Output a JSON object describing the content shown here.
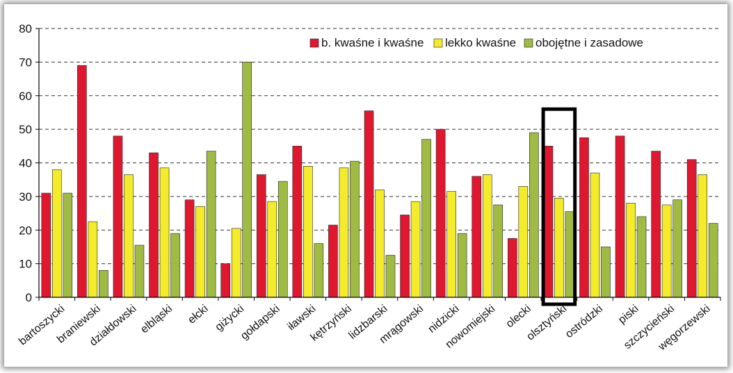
{
  "chart_data": {
    "type": "bar",
    "title": "",
    "xlabel": "",
    "ylabel": "",
    "ylim": [
      0,
      80
    ],
    "yticks": [
      0,
      10,
      20,
      30,
      40,
      50,
      60,
      70,
      80
    ],
    "grid": "horizontal dashed",
    "legend_position": "top-right",
    "categories": [
      "bartoszycki",
      "braniewski",
      "działdowski",
      "elbląski",
      "ełcki",
      "giżycki",
      "gołdapski",
      "iławski",
      "kętrzyński",
      "lidzbarski",
      "mrągowski",
      "nidzicki",
      "nowomiejski",
      "olecki",
      "olsztyński",
      "ostródzki",
      "piski",
      "szczycieński",
      "węgorzewski"
    ],
    "series": [
      {
        "name": "b. kwaśne i kwaśne",
        "color": "#e0182f",
        "values": [
          31,
          69,
          48,
          43,
          29,
          10,
          36.5,
          45,
          21.5,
          55.5,
          24.5,
          50,
          36,
          17.5,
          45,
          47.5,
          48,
          43.5,
          41
        ]
      },
      {
        "name": "lekko kwaśne",
        "color": "#f4ec2a",
        "values": [
          38,
          22.5,
          36.5,
          38.5,
          27,
          20.5,
          28.5,
          39,
          38.5,
          32,
          28.5,
          31.5,
          36.5,
          33,
          29.5,
          37,
          28,
          27.5,
          36.5
        ]
      },
      {
        "name": "obojętne i zasadowe",
        "color": "#9fbb44",
        "values": [
          31,
          8,
          15.5,
          19,
          43.5,
          70,
          34.5,
          16,
          40.5,
          12.5,
          47,
          19,
          27.5,
          49,
          25.5,
          15,
          24,
          29,
          22
        ]
      }
    ],
    "highlight": {
      "category": "olsztyński",
      "style": "black rectangle"
    }
  }
}
